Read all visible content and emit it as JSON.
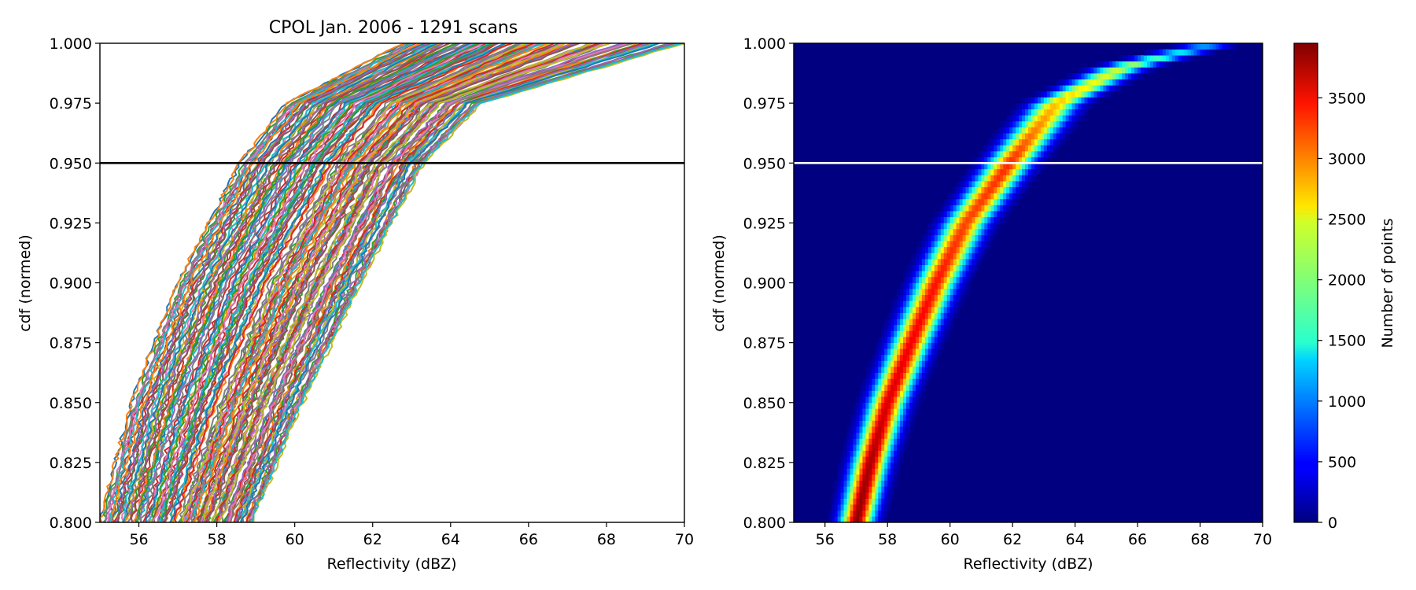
{
  "chart_data": [
    {
      "type": "line",
      "title": "CPOL Jan. 2006 - 1291 scans",
      "xlabel": "Reflectivity (dBZ)",
      "ylabel": "cdf (normed)",
      "xlim": [
        55,
        70
      ],
      "ylim": [
        0.8,
        1.0
      ],
      "xticks": [
        "56",
        "58",
        "60",
        "62",
        "64",
        "66",
        "68",
        "70"
      ],
      "yticks": [
        "0.800",
        "0.825",
        "0.850",
        "0.875",
        "0.900",
        "0.925",
        "0.950",
        "0.975",
        "1.000"
      ],
      "reference_line": {
        "y": 0.95,
        "color": "#000000"
      },
      "grid": false,
      "series_note": "many individual scan cdf curves (1291), colours cycling through the default palette",
      "series_colors": [
        "#1f77b4",
        "#ff7f0e",
        "#2ca02c",
        "#d62728",
        "#9467bd",
        "#8c564b",
        "#e377c2",
        "#7f7f7f",
        "#bcbd22",
        "#17becf"
      ],
      "series_x_at_y": {
        "y": [
          0.8,
          0.85,
          0.9,
          0.95,
          0.975,
          1.0
        ],
        "leftmost": [
          55.0,
          55.8,
          57.0,
          58.6,
          59.8,
          62.8
        ],
        "median": [
          57.2,
          58.3,
          59.6,
          61.3,
          62.6,
          66.0
        ],
        "rightmost": [
          58.9,
          60.2,
          61.7,
          63.3,
          64.8,
          70.0
        ]
      }
    },
    {
      "type": "heatmap",
      "xlabel": "Reflectivity (dBZ)",
      "ylabel": "cdf (normed)",
      "xlim": [
        55,
        70
      ],
      "ylim": [
        0.8,
        1.0
      ],
      "xticks": [
        "56",
        "58",
        "60",
        "62",
        "64",
        "66",
        "68",
        "70"
      ],
      "yticks": [
        "0.800",
        "0.825",
        "0.850",
        "0.875",
        "0.900",
        "0.925",
        "0.950",
        "0.975",
        "1.000"
      ],
      "reference_line": {
        "y": 0.95,
        "color": "#ffffff"
      },
      "colormap": "jet",
      "colorbar": {
        "label": "Number of points",
        "min": 0,
        "max": 3950,
        "ticks": [
          "0",
          "500",
          "1000",
          "1500",
          "2000",
          "2500",
          "3000",
          "3500"
        ]
      },
      "ridge": {
        "y": [
          0.8,
          0.825,
          0.85,
          0.875,
          0.9,
          0.925,
          0.95,
          0.975,
          0.99,
          1.0
        ],
        "x": [
          57.0,
          57.45,
          58.0,
          58.75,
          59.55,
          60.5,
          61.9,
          63.4,
          65.5,
          68.5
        ],
        "peak": [
          3900,
          3800,
          3600,
          3500,
          3400,
          3200,
          3300,
          2700,
          2200,
          900
        ]
      }
    }
  ]
}
